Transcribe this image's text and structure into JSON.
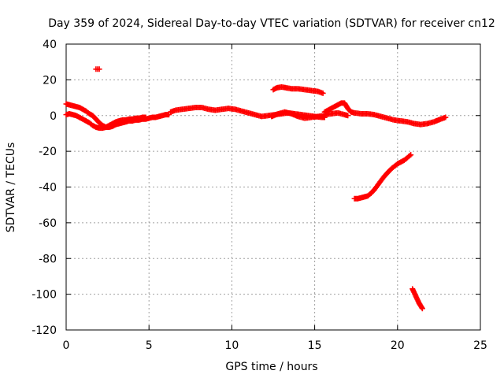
{
  "chart_data": {
    "type": "scatter",
    "title": "Day 359 of 2024, Sidereal Day-to-day VTEC variation (SDTVAR) for receiver cn12",
    "xlabel": "GPS time / hours",
    "ylabel": "SDTVAR / TECUs",
    "xlim": [
      0,
      25
    ],
    "ylim": [
      -120,
      40
    ],
    "xticks": [
      0,
      5,
      10,
      15,
      20,
      25
    ],
    "yticks": [
      -120,
      -100,
      -80,
      -60,
      -40,
      -20,
      0,
      20,
      40
    ],
    "grid": true,
    "marker": "+",
    "color": "#ff0000",
    "series": [
      {
        "name": "trace-1",
        "points": [
          [
            0.0,
            6.5
          ],
          [
            0.2,
            6.0
          ],
          [
            0.4,
            5.5
          ],
          [
            0.6,
            5.0
          ],
          [
            0.8,
            4.5
          ],
          [
            1.0,
            3.5
          ],
          [
            1.2,
            2.5
          ],
          [
            1.4,
            1.0
          ],
          [
            1.6,
            0.0
          ],
          [
            1.8,
            -2.0
          ],
          [
            2.0,
            -4.0
          ],
          [
            2.2,
            -5.5
          ],
          [
            2.4,
            -6.5
          ],
          [
            2.6,
            -6.5
          ],
          [
            2.8,
            -6.0
          ],
          [
            3.0,
            -5.0
          ],
          [
            3.2,
            -4.5
          ],
          [
            3.4,
            -4.0
          ],
          [
            3.6,
            -3.5
          ],
          [
            3.8,
            -3.0
          ],
          [
            4.0,
            -3.0
          ],
          [
            4.2,
            -2.5
          ],
          [
            4.4,
            -2.5
          ],
          [
            4.6,
            -2.0
          ],
          [
            4.8,
            -2.0
          ],
          [
            5.0,
            -1.5
          ],
          [
            5.2,
            -1.0
          ],
          [
            5.4,
            -1.0
          ],
          [
            5.6,
            -0.5
          ],
          [
            5.8,
            0.0
          ],
          [
            6.0,
            0.5
          ],
          [
            6.2,
            0.5
          ]
        ]
      },
      {
        "name": "trace-2",
        "points": [
          [
            0.0,
            0.5
          ],
          [
            0.2,
            1.0
          ],
          [
            0.4,
            0.5
          ],
          [
            0.6,
            0.0
          ],
          [
            0.8,
            -1.0
          ],
          [
            1.0,
            -2.0
          ],
          [
            1.2,
            -3.0
          ],
          [
            1.4,
            -4.0
          ],
          [
            1.6,
            -5.5
          ],
          [
            1.8,
            -6.5
          ],
          [
            2.0,
            -7.0
          ],
          [
            2.2,
            -7.0
          ],
          [
            2.4,
            -6.5
          ],
          [
            2.6,
            -5.5
          ],
          [
            2.8,
            -4.5
          ],
          [
            3.0,
            -3.5
          ],
          [
            3.2,
            -3.0
          ],
          [
            3.4,
            -2.5
          ],
          [
            3.6,
            -2.5
          ],
          [
            3.8,
            -2.0
          ],
          [
            4.0,
            -2.0
          ],
          [
            4.2,
            -1.5
          ],
          [
            4.4,
            -1.5
          ],
          [
            4.6,
            -1.0
          ],
          [
            4.8,
            -1.0
          ]
        ]
      },
      {
        "name": "trace-3",
        "points": [
          [
            6.3,
            2.0
          ],
          [
            6.6,
            3.0
          ],
          [
            7.0,
            3.5
          ],
          [
            7.4,
            4.0
          ],
          [
            7.8,
            4.5
          ],
          [
            8.2,
            4.5
          ],
          [
            8.6,
            3.5
          ],
          [
            9.0,
            3.0
          ],
          [
            9.4,
            3.5
          ],
          [
            9.8,
            4.0
          ],
          [
            10.2,
            3.5
          ],
          [
            10.6,
            2.5
          ],
          [
            11.0,
            1.5
          ],
          [
            11.4,
            0.5
          ],
          [
            11.8,
            -0.5
          ],
          [
            12.2,
            0.0
          ],
          [
            12.6,
            0.5
          ],
          [
            13.0,
            1.0
          ],
          [
            13.4,
            1.5
          ],
          [
            13.8,
            1.0
          ],
          [
            14.2,
            0.5
          ],
          [
            14.6,
            0.0
          ],
          [
            15.0,
            -0.5
          ],
          [
            15.4,
            -1.0
          ],
          [
            15.6,
            -1.0
          ]
        ]
      },
      {
        "name": "trace-4",
        "points": [
          [
            12.4,
            -0.5
          ],
          [
            12.8,
            1.0
          ],
          [
            13.2,
            2.0
          ],
          [
            13.6,
            1.0
          ],
          [
            14.0,
            -0.5
          ],
          [
            14.4,
            -1.5
          ],
          [
            14.8,
            -1.0
          ],
          [
            15.2,
            -0.5
          ],
          [
            15.6,
            0.0
          ]
        ]
      },
      {
        "name": "trace-5",
        "points": [
          [
            12.5,
            14.5
          ],
          [
            12.7,
            15.5
          ],
          [
            13.0,
            16.0
          ],
          [
            13.3,
            15.5
          ],
          [
            13.6,
            15.0
          ],
          [
            14.0,
            15.0
          ],
          [
            14.4,
            14.5
          ],
          [
            14.8,
            14.0
          ],
          [
            15.2,
            13.5
          ],
          [
            15.5,
            12.5
          ]
        ]
      },
      {
        "name": "trace-6",
        "points": [
          [
            15.6,
            2.0
          ],
          [
            15.8,
            3.0
          ],
          [
            16.0,
            4.0
          ],
          [
            16.2,
            5.0
          ],
          [
            16.4,
            6.0
          ],
          [
            16.6,
            7.0
          ],
          [
            16.8,
            7.0
          ],
          [
            17.0,
            4.0
          ],
          [
            17.2,
            2.0
          ],
          [
            17.4,
            1.5
          ],
          [
            17.8,
            1.0
          ],
          [
            18.2,
            1.0
          ],
          [
            18.6,
            0.5
          ],
          [
            19.0,
            -0.5
          ],
          [
            19.4,
            -1.5
          ],
          [
            19.8,
            -2.5
          ],
          [
            20.2,
            -3.0
          ],
          [
            20.6,
            -3.5
          ],
          [
            21.0,
            -4.5
          ],
          [
            21.4,
            -5.0
          ],
          [
            21.8,
            -4.5
          ],
          [
            22.2,
            -3.5
          ],
          [
            22.6,
            -2.0
          ],
          [
            22.9,
            -1.0
          ]
        ]
      },
      {
        "name": "trace-7",
        "points": [
          [
            15.6,
            0.5
          ],
          [
            16.0,
            1.0
          ],
          [
            16.4,
            1.5
          ],
          [
            16.8,
            0.5
          ],
          [
            17.0,
            0.0
          ]
        ]
      },
      {
        "name": "trace-8",
        "points": [
          [
            17.4,
            -46.5
          ],
          [
            17.6,
            -46.5
          ],
          [
            17.8,
            -46.0
          ],
          [
            18.0,
            -45.5
          ],
          [
            18.2,
            -45.0
          ],
          [
            18.4,
            -43.5
          ],
          [
            18.6,
            -41.5
          ],
          [
            18.8,
            -39.0
          ],
          [
            19.0,
            -36.5
          ],
          [
            19.2,
            -34.0
          ],
          [
            19.4,
            -32.0
          ],
          [
            19.6,
            -30.0
          ],
          [
            19.8,
            -28.5
          ],
          [
            20.0,
            -27.0
          ],
          [
            20.2,
            -26.0
          ],
          [
            20.4,
            -25.0
          ],
          [
            20.6,
            -23.5
          ],
          [
            20.8,
            -22.0
          ]
        ]
      },
      {
        "name": "trace-9",
        "points": [
          [
            20.9,
            -97.0
          ],
          [
            21.0,
            -99.0
          ],
          [
            21.1,
            -101.0
          ],
          [
            21.2,
            -103.0
          ],
          [
            21.3,
            -105.0
          ],
          [
            21.4,
            -106.5
          ],
          [
            21.5,
            -108.0
          ]
        ]
      },
      {
        "name": "trace-10",
        "points": [
          [
            1.8,
            26.0
          ],
          [
            1.9,
            26.0
          ],
          [
            2.0,
            26.0
          ]
        ]
      }
    ]
  }
}
